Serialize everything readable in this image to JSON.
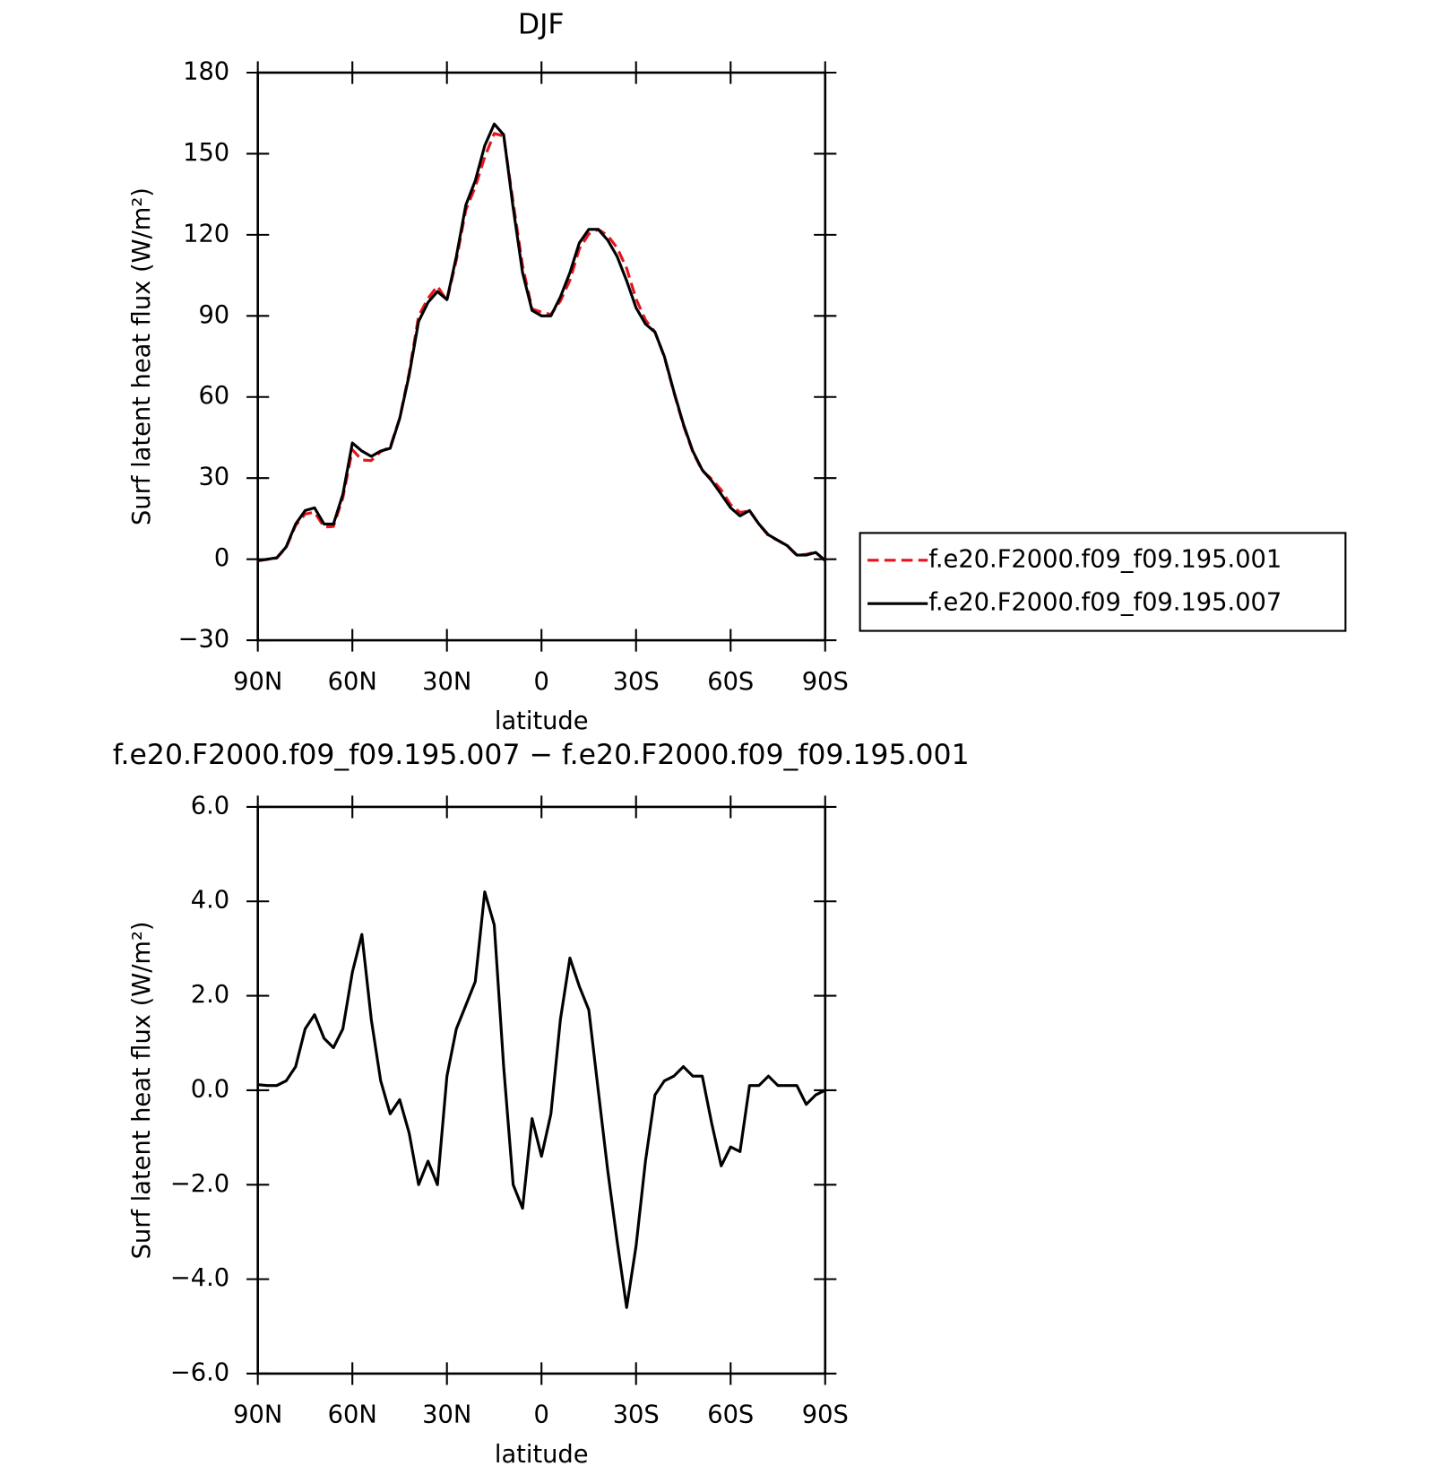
{
  "chart_data": [
    {
      "type": "line",
      "title": "DJF",
      "xlabel": "latitude",
      "ylabel": "Surf latent heat flux (W/m²)",
      "x": [
        90,
        87,
        84,
        81,
        78,
        75,
        72,
        69,
        66,
        63,
        60,
        57,
        54,
        51,
        48,
        45,
        42,
        39,
        36,
        33,
        30,
        27,
        24,
        21,
        18,
        15,
        12,
        9,
        6,
        3,
        0,
        -3,
        -6,
        -9,
        -12,
        -15,
        -18,
        -21,
        -24,
        -27,
        -30,
        -33,
        -36,
        -39,
        -42,
        -45,
        -48,
        -51,
        -54,
        -57,
        -60,
        -63,
        -66,
        -69,
        -72,
        -75,
        -78,
        -81,
        -84,
        -87,
        -90
      ],
      "xlim": [
        90,
        -90
      ],
      "xticks": [
        {
          "value": 90,
          "label": "90N"
        },
        {
          "value": 60,
          "label": "60N"
        },
        {
          "value": 30,
          "label": "30N"
        },
        0,
        {
          "value": -30,
          "label": "30S"
        },
        {
          "value": -60,
          "label": "60S"
        },
        {
          "value": -90,
          "label": "90S"
        }
      ],
      "ylim": [
        -30,
        180
      ],
      "yticks": [
        {
          "value": -30,
          "label": "−30"
        },
        0,
        30,
        60,
        90,
        120,
        150,
        180
      ],
      "legend": "outside right",
      "series": [
        {
          "name": "f.e20.F2000.f09_f09.195.001",
          "color": "#e8141c",
          "linestyle": "dashed",
          "values": [
            -0.6,
            -0.1,
            0.4,
            4.3,
            12.5,
            16.7,
            17.4,
            11.9,
            12.1,
            22.7,
            40.5,
            36.7,
            36.5,
            39.8,
            41.5,
            52.2,
            68.9,
            90,
            96.5,
            101,
            95.7,
            110.7,
            129.2,
            137.7,
            148.8,
            157.5,
            156.5,
            132,
            108.5,
            92.6,
            91.4,
            90.5,
            95.5,
            103.2,
            114.8,
            120.3,
            122,
            119.7,
            115.2,
            107.6,
            96.3,
            88.5,
            84.1,
            74.8,
            61.7,
            49.5,
            39.7,
            32.7,
            29.7,
            25.6,
            20.2,
            17.3,
            17.9,
            12.9,
            8.7,
            6.9,
            4.9,
            1.4,
            1.8,
            2.6,
            -0.5
          ]
        },
        {
          "name": "f.e20.F2000.f09_f09.195.007",
          "color": "#000000",
          "linestyle": "solid",
          "values": [
            -0.5,
            0,
            0.5,
            4.5,
            13,
            18,
            19,
            13,
            13,
            24,
            43,
            40,
            38,
            40,
            41,
            52,
            68,
            88,
            95,
            99,
            96,
            112,
            131,
            140,
            153,
            161,
            157,
            130,
            106,
            92,
            90,
            90,
            97,
            106,
            117,
            122,
            122,
            118,
            112,
            103,
            93,
            87,
            84,
            75,
            62,
            50,
            40,
            33,
            29,
            24,
            19,
            16,
            18,
            13,
            9,
            7,
            5,
            1.5,
            1.5,
            2.5,
            -0.5
          ]
        }
      ]
    },
    {
      "type": "line",
      "title": "f.e20.F2000.f09_f09.195.007 − f.e20.F2000.f09_f09.195.001",
      "xlabel": "latitude",
      "ylabel": "Surf latent heat flux (W/m²)",
      "x": [
        90,
        87,
        84,
        81,
        78,
        75,
        72,
        69,
        66,
        63,
        60,
        57,
        54,
        51,
        48,
        45,
        42,
        39,
        36,
        33,
        30,
        27,
        24,
        21,
        18,
        15,
        12,
        9,
        6,
        3,
        0,
        -3,
        -6,
        -9,
        -12,
        -15,
        -18,
        -21,
        -24,
        -27,
        -30,
        -33,
        -36,
        -39,
        -42,
        -45,
        -48,
        -51,
        -54,
        -57,
        -60,
        -63,
        -66,
        -69,
        -72,
        -75,
        -78,
        -81,
        -84,
        -87,
        -90
      ],
      "xlim": [
        90,
        -90
      ],
      "xticks": [
        {
          "value": 90,
          "label": "90N"
        },
        {
          "value": 60,
          "label": "60N"
        },
        {
          "value": 30,
          "label": "30N"
        },
        0,
        {
          "value": -30,
          "label": "30S"
        },
        {
          "value": -60,
          "label": "60S"
        },
        {
          "value": -90,
          "label": "90S"
        }
      ],
      "ylim": [
        -6,
        6
      ],
      "yticks": [
        {
          "value": -6,
          "label": "−6.0"
        },
        {
          "value": -4,
          "label": "−4.0"
        },
        {
          "value": -2,
          "label": "−2.0"
        },
        {
          "value": 0,
          "label": "0.0"
        },
        {
          "value": 2,
          "label": "2.0"
        },
        {
          "value": 4,
          "label": "4.0"
        },
        {
          "value": 6,
          "label": "6.0"
        }
      ],
      "series": [
        {
          "color": "#000000",
          "linestyle": "solid",
          "values": [
            0.12,
            0.1,
            0.1,
            0.2,
            0.5,
            1.3,
            1.6,
            1.1,
            0.9,
            1.3,
            2.5,
            3.3,
            1.5,
            0.2,
            -0.5,
            -0.2,
            -0.9,
            -2.0,
            -1.5,
            -2.0,
            0.3,
            1.3,
            1.8,
            2.3,
            4.2,
            3.5,
            0.5,
            -2.0,
            -2.5,
            -0.6,
            -1.4,
            -0.5,
            1.5,
            2.8,
            2.2,
            1.7,
            0.0,
            -1.7,
            -3.2,
            -4.6,
            -3.3,
            -1.5,
            -0.1,
            0.2,
            0.3,
            0.5,
            0.3,
            0.3,
            -0.7,
            -1.6,
            -1.2,
            -1.3,
            0.1,
            0.1,
            0.3,
            0.1,
            0.1,
            0.1,
            -0.3,
            -0.1,
            0.0
          ]
        }
      ]
    }
  ]
}
